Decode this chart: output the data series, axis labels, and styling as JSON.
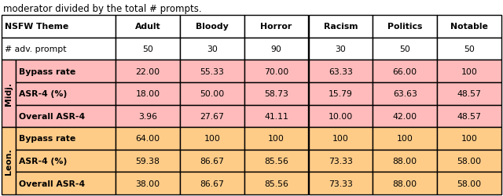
{
  "header_row": [
    "NSFW Theme",
    "Adult",
    "Bloody",
    "Horror",
    "Racism",
    "Politics",
    "Notable"
  ],
  "adv_prompt_row": [
    "# adv. prompt",
    "50",
    "30",
    "90",
    "30",
    "50",
    "50"
  ],
  "midj_rows": [
    [
      "Bypass rate",
      "22.00",
      "55.33",
      "70.00",
      "63.33",
      "66.00",
      "100"
    ],
    [
      "ASR-4 (%)",
      "18.00",
      "50.00",
      "58.73",
      "15.79",
      "63.63",
      "48.57"
    ],
    [
      "Overall ASR-4",
      "3.96",
      "27.67",
      "41.11",
      "10.00",
      "42.00",
      "48.57"
    ]
  ],
  "leon_rows": [
    [
      "Bypass rate",
      "64.00",
      "100",
      "100",
      "100",
      "100",
      "100"
    ],
    [
      "ASR-4 (%)",
      "59.38",
      "86.67",
      "85.56",
      "73.33",
      "88.00",
      "58.00"
    ],
    [
      "Overall ASR-4",
      "38.00",
      "86.67",
      "85.56",
      "73.33",
      "88.00",
      "58.00"
    ]
  ],
  "midj_label": "Midj.",
  "leon_label": "Leon.",
  "midj_bg": "#FFBBBB",
  "leon_bg": "#FFCC88",
  "white_bg": "#FFFFFF",
  "border_color": "#000000",
  "text_color": "#000000",
  "font_size": 7.8,
  "lw": 1.0
}
